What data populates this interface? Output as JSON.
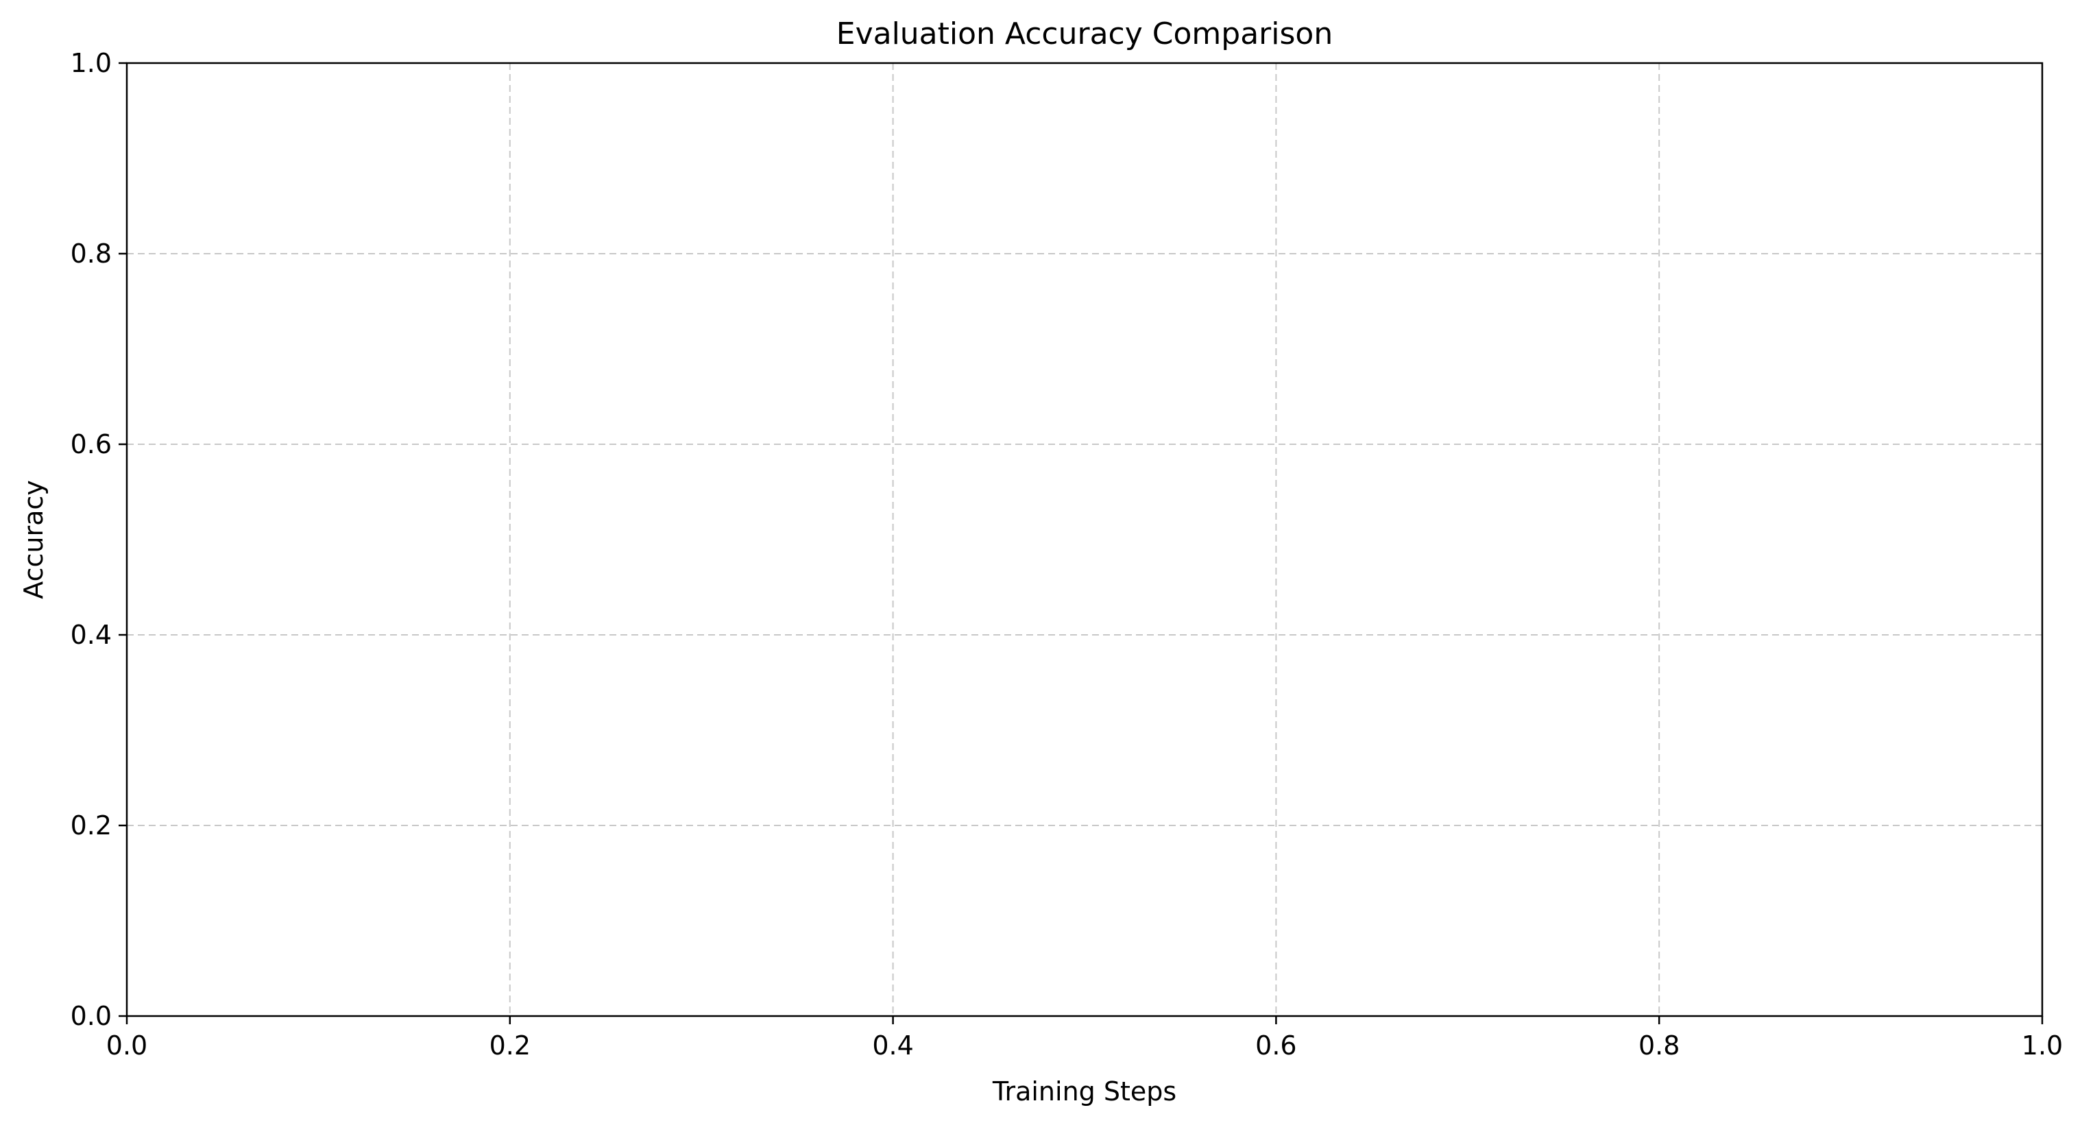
{
  "chart_data": {
    "type": "line",
    "title": "Evaluation Accuracy Comparison",
    "xlabel": "Training Steps",
    "ylabel": "Accuracy",
    "xlim": [
      0.0,
      1.0
    ],
    "ylim": [
      0.0,
      1.0
    ],
    "xticks": [
      0.0,
      0.2,
      0.4,
      0.6,
      0.8,
      1.0
    ],
    "yticks": [
      0.0,
      0.2,
      0.4,
      0.6,
      0.8,
      1.0
    ],
    "xtick_labels": [
      "0.0",
      "0.2",
      "0.4",
      "0.6",
      "0.8",
      "1.0"
    ],
    "ytick_labels": [
      "0.0",
      "0.2",
      "0.4",
      "0.6",
      "0.8",
      "1.0"
    ],
    "grid": true,
    "series": []
  }
}
